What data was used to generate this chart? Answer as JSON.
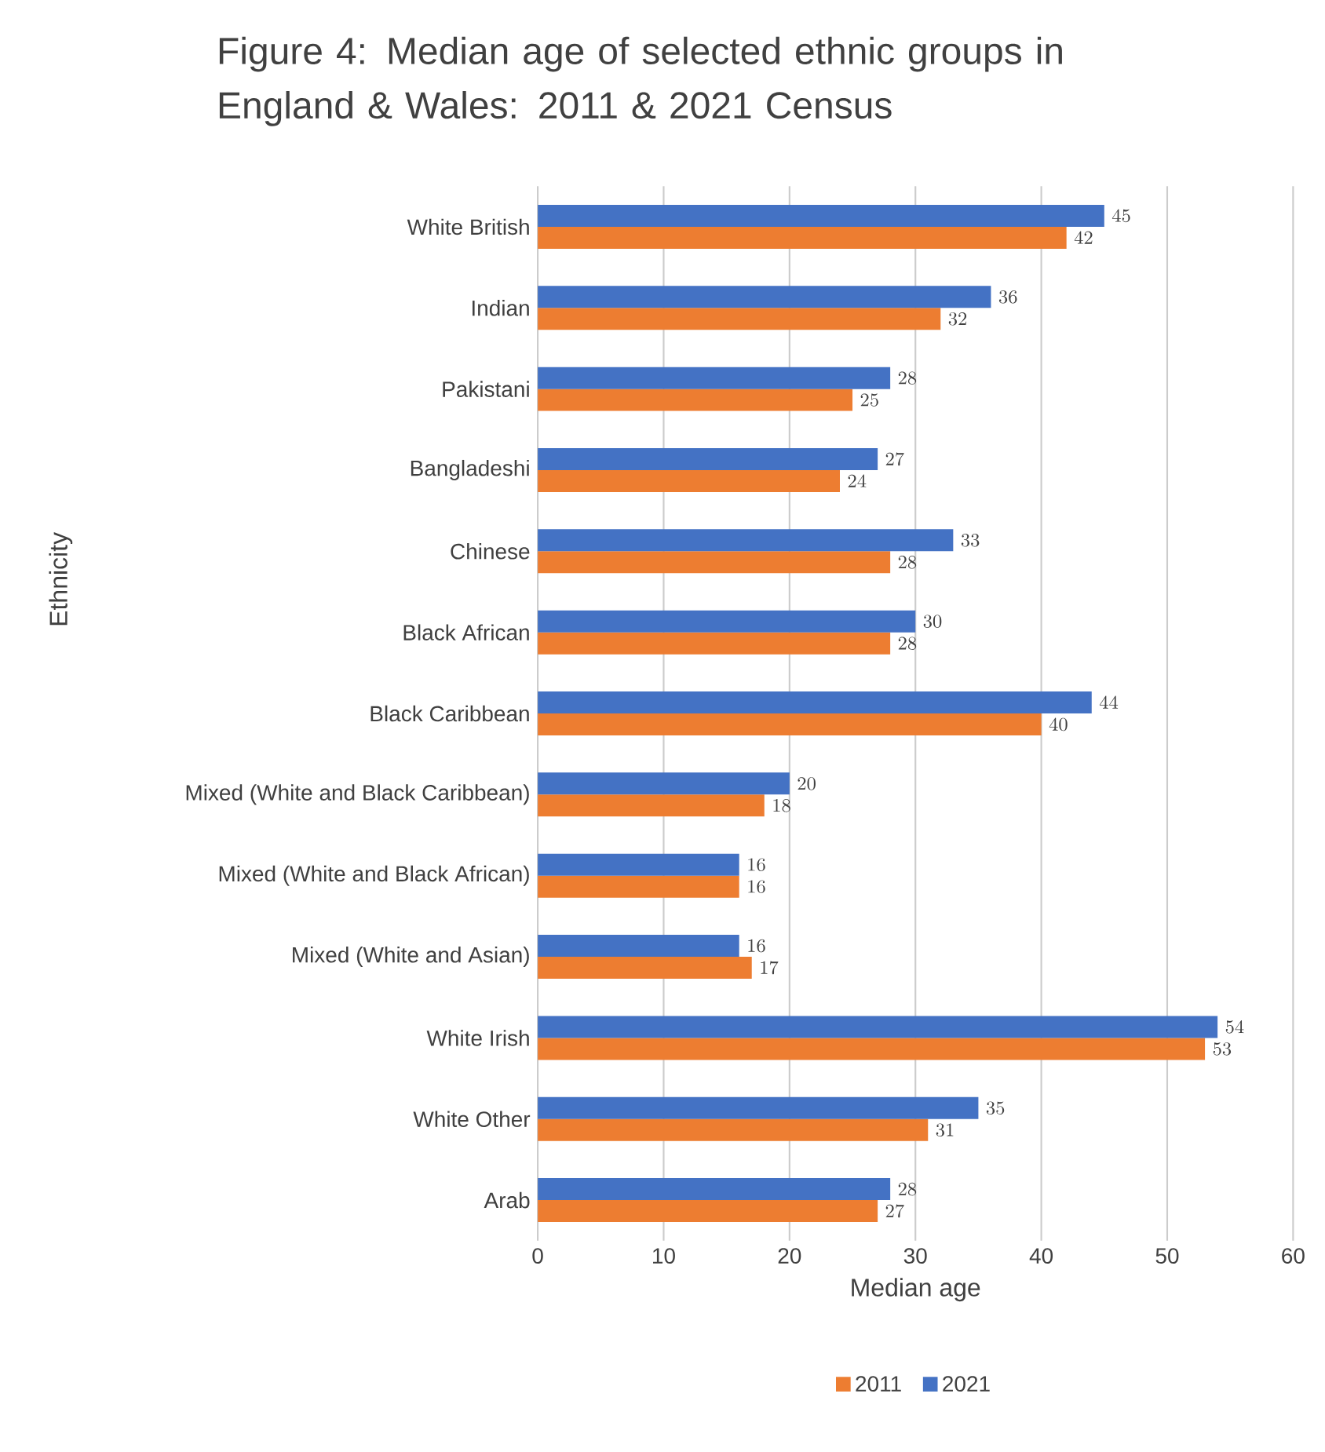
{
  "chart_data": {
    "type": "bar",
    "orientation": "horizontal",
    "title": "Figure 4: Median age of selected ethnic groups in England & Wales: 2011 & 2021 Census",
    "xlabel": "Median age",
    "ylabel": "Ethnicity",
    "categories": [
      "White British",
      "Indian",
      "Pakistani",
      "Bangladeshi",
      "Chinese",
      "Black African",
      "Black Caribbean",
      "Mixed (White and Black Caribbean)",
      "Mixed (White and Black African)",
      "Mixed (White and Asian)",
      "White Irish",
      "White Other",
      "Arab"
    ],
    "series": [
      {
        "name": "2011",
        "color": "#ed7d31",
        "values": [
          42,
          32,
          25,
          24,
          28,
          28,
          40,
          18,
          16,
          17,
          53,
          31,
          27
        ]
      },
      {
        "name": "2021",
        "color": "#4472c4",
        "values": [
          45,
          36,
          28,
          27,
          33,
          30,
          44,
          20,
          16,
          16,
          54,
          35,
          28
        ]
      }
    ],
    "xlim": [
      0,
      60
    ],
    "xticks": [
      0,
      10,
      20,
      30,
      40,
      50,
      60
    ],
    "grid": "x",
    "legend": "bottom",
    "data_labels": true
  }
}
